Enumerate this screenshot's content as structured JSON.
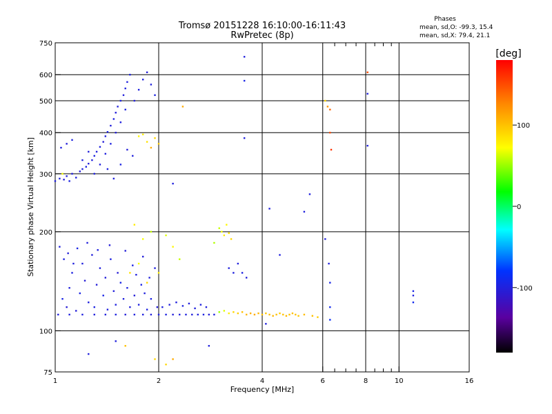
{
  "chart_data": {
    "type": "scatter",
    "title": "Tromsø 20151228 16:10:00-16:11:43",
    "subtitle": "RwPretec (8p)",
    "info": {
      "heading": "Phases",
      "line1": "mean, sd,O:  -99.3, 15.4",
      "line2": "mean, sd,X:  79.4, 21.1"
    },
    "xlabel": "Frequency [MHz]",
    "ylabel": "Stationary phase Virtual Height [km]",
    "x_scale": "log",
    "y_scale": "log",
    "xlim": [
      1,
      16
    ],
    "ylim": [
      75,
      750
    ],
    "x_ticks": [
      {
        "value": 1,
        "label": "1"
      },
      {
        "value": 2,
        "label": "2"
      },
      {
        "value": 4,
        "label": "4"
      },
      {
        "value": 6,
        "label": "6"
      },
      {
        "value": 8,
        "label": "8"
      },
      {
        "value": 10,
        "label": "10"
      },
      {
        "value": 16,
        "label": "16"
      }
    ],
    "x_grid": [
      2,
      4,
      6,
      8,
      10
    ],
    "x_minor": [
      6.5,
      7,
      7.5,
      8.5,
      9,
      9.5
    ],
    "y_ticks": [
      {
        "value": 75,
        "label": "75"
      },
      {
        "value": 100,
        "label": "100"
      },
      {
        "value": 200,
        "label": "200"
      },
      {
        "value": 300,
        "label": "300"
      },
      {
        "value": 400,
        "label": "400"
      },
      {
        "value": 500,
        "label": "500"
      },
      {
        "value": 600,
        "label": "600"
      },
      {
        "value": 750,
        "label": "750"
      }
    ],
    "y_grid": [
      100,
      200,
      300,
      400,
      500,
      600
    ],
    "colorbar": {
      "label": "[deg]",
      "range": [
        -180,
        180
      ],
      "ticks": [
        {
          "value": 100,
          "label": "100"
        },
        {
          "value": 0,
          "label": "0"
        },
        {
          "value": -100,
          "label": "-100"
        }
      ]
    },
    "points": [
      [
        1.02,
        112,
        -100
      ],
      [
        1.05,
        125,
        -95
      ],
      [
        1.08,
        118,
        -105
      ],
      [
        1.1,
        135,
        -100
      ],
      [
        1.12,
        150,
        -98
      ],
      [
        1.15,
        115,
        -102
      ],
      [
        1.18,
        130,
        -96
      ],
      [
        1.2,
        160,
        -100
      ],
      [
        1.22,
        142,
        -104
      ],
      [
        1.25,
        122,
        -99
      ],
      [
        1.28,
        170,
        -101
      ],
      [
        1.3,
        118,
        -97
      ],
      [
        1.32,
        138,
        -103
      ],
      [
        1.35,
        155,
        -100
      ],
      [
        1.38,
        128,
        -95
      ],
      [
        1.4,
        145,
        -102
      ],
      [
        1.42,
        116,
        -100
      ],
      [
        1.45,
        165,
        -98
      ],
      [
        1.48,
        132,
        -101
      ],
      [
        1.5,
        120,
        -99
      ],
      [
        1.52,
        150,
        -104
      ],
      [
        1.55,
        140,
        -96
      ],
      [
        1.58,
        125,
        -100
      ],
      [
        1.6,
        175,
        -102
      ],
      [
        1.62,
        135,
        -98
      ],
      [
        1.65,
        118,
        -101
      ],
      [
        1.68,
        158,
        -97
      ],
      [
        1.7,
        128,
        -103
      ],
      [
        1.72,
        148,
        -100
      ],
      [
        1.75,
        120,
        -99
      ],
      [
        1.78,
        138,
        -95
      ],
      [
        1.8,
        168,
        -102
      ],
      [
        1.82,
        130,
        -100
      ],
      [
        1.85,
        116,
        -98
      ],
      [
        1.88,
        145,
        -101
      ],
      [
        1.9,
        125,
        -97
      ],
      [
        1.95,
        155,
        -100
      ],
      [
        1.98,
        118,
        -104
      ],
      [
        1.03,
        180,
        -100
      ],
      [
        1.06,
        165,
        -98
      ],
      [
        1.09,
        172,
        -102
      ],
      [
        1.13,
        160,
        -100
      ],
      [
        1.16,
        178,
        -96
      ],
      [
        1.24,
        185,
        -101
      ],
      [
        1.33,
        176,
        -99
      ],
      [
        1.44,
        182,
        -103
      ],
      [
        1.0,
        285,
        -100
      ],
      [
        1.03,
        290,
        -98
      ],
      [
        1.06,
        288,
        -102
      ],
      [
        1.08,
        295,
        -100
      ],
      [
        1.1,
        285,
        -97
      ],
      [
        1.12,
        300,
        -101
      ],
      [
        1.15,
        292,
        -99
      ],
      [
        1.18,
        305,
        -103
      ],
      [
        1.2,
        310,
        -100
      ],
      [
        1.23,
        315,
        -96
      ],
      [
        1.25,
        322,
        -102
      ],
      [
        1.28,
        330,
        -100
      ],
      [
        1.3,
        340,
        -98
      ],
      [
        1.32,
        350,
        -101
      ],
      [
        1.35,
        362,
        -99
      ],
      [
        1.38,
        375,
        -103
      ],
      [
        1.4,
        390,
        -100
      ],
      [
        1.42,
        402,
        -97
      ],
      [
        1.45,
        420,
        -101
      ],
      [
        1.48,
        440,
        -99
      ],
      [
        1.5,
        460,
        -102
      ],
      [
        1.52,
        480,
        -100
      ],
      [
        1.55,
        500,
        -98
      ],
      [
        1.58,
        520,
        -101
      ],
      [
        1.6,
        545,
        -99
      ],
      [
        1.62,
        570,
        -100
      ],
      [
        1.65,
        600,
        -97
      ],
      [
        1.3,
        300,
        -99
      ],
      [
        1.35,
        320,
        -101
      ],
      [
        1.4,
        345,
        -100
      ],
      [
        1.45,
        370,
        -98
      ],
      [
        1.5,
        400,
        -102
      ],
      [
        1.55,
        430,
        -100
      ],
      [
        1.6,
        470,
        -97
      ],
      [
        1.7,
        500,
        -101
      ],
      [
        1.75,
        540,
        -99
      ],
      [
        1.8,
        580,
        -100
      ],
      [
        1.85,
        610,
        -103
      ],
      [
        1.9,
        560,
        -100
      ],
      [
        1.95,
        520,
        -98
      ],
      [
        1.04,
        360,
        -100
      ],
      [
        1.08,
        370,
        -102
      ],
      [
        1.12,
        380,
        -98
      ],
      [
        1.2,
        330,
        -100
      ],
      [
        1.25,
        350,
        -101
      ],
      [
        1.42,
        310,
        -99
      ],
      [
        1.48,
        290,
        -100
      ],
      [
        1.55,
        320,
        -97
      ],
      [
        1.62,
        355,
        -102
      ],
      [
        1.68,
        340,
        -100
      ],
      [
        1.75,
        390,
        75
      ],
      [
        1.85,
        375,
        85
      ],
      [
        1.95,
        385,
        90
      ],
      [
        2.0,
        370,
        95
      ],
      [
        1.9,
        360,
        110
      ],
      [
        1.8,
        395,
        80
      ],
      [
        1.05,
        300,
        70
      ],
      [
        1.1,
        112,
        -100
      ],
      [
        1.2,
        112,
        -99
      ],
      [
        1.3,
        112,
        -101
      ],
      [
        1.4,
        112,
        -100
      ],
      [
        1.5,
        112,
        -98
      ],
      [
        1.6,
        112,
        -102
      ],
      [
        1.7,
        112,
        -100
      ],
      [
        1.8,
        112,
        -99
      ],
      [
        1.9,
        112,
        -101
      ],
      [
        2.0,
        112,
        -100
      ],
      [
        2.1,
        112,
        -98
      ],
      [
        2.2,
        112,
        -102
      ],
      [
        2.3,
        112,
        -100
      ],
      [
        2.4,
        112,
        -99
      ],
      [
        2.5,
        112,
        -101
      ],
      [
        2.6,
        112,
        -100
      ],
      [
        2.7,
        112,
        -98
      ],
      [
        2.8,
        112,
        -102
      ],
      [
        2.9,
        112,
        -100
      ],
      [
        2.05,
        118,
        -99
      ],
      [
        2.15,
        120,
        -101
      ],
      [
        2.25,
        122,
        -100
      ],
      [
        2.35,
        119,
        -98
      ],
      [
        2.45,
        121,
        -102
      ],
      [
        2.55,
        117,
        -100
      ],
      [
        2.65,
        120,
        -99
      ],
      [
        2.75,
        118,
        -101
      ],
      [
        3.0,
        114,
        50
      ],
      [
        3.1,
        115,
        65
      ],
      [
        3.2,
        113,
        80
      ],
      [
        3.3,
        114,
        90
      ],
      [
        3.4,
        113,
        95
      ],
      [
        3.5,
        114,
        100
      ],
      [
        3.6,
        112,
        105
      ],
      [
        3.7,
        113,
        108
      ],
      [
        3.8,
        112,
        110
      ],
      [
        3.9,
        113,
        105
      ],
      [
        4.0,
        112,
        100
      ],
      [
        4.1,
        113,
        98
      ],
      [
        4.2,
        112,
        102
      ],
      [
        4.3,
        111,
        104
      ],
      [
        4.4,
        112,
        100
      ],
      [
        4.5,
        113,
        96
      ],
      [
        4.6,
        112,
        100
      ],
      [
        4.7,
        111,
        103
      ],
      [
        4.8,
        112,
        99
      ],
      [
        4.9,
        113,
        101
      ],
      [
        5.0,
        112,
        100
      ],
      [
        5.1,
        111,
        97
      ],
      [
        5.3,
        112,
        102
      ],
      [
        5.6,
        111,
        100
      ],
      [
        5.8,
        110,
        95
      ],
      [
        3.0,
        205,
        60
      ],
      [
        3.05,
        200,
        70
      ],
      [
        3.1,
        195,
        80
      ],
      [
        3.15,
        210,
        75
      ],
      [
        3.2,
        198,
        85
      ],
      [
        3.25,
        190,
        90
      ],
      [
        2.9,
        185,
        55
      ],
      [
        1.9,
        200,
        60
      ],
      [
        1.8,
        190,
        70
      ],
      [
        1.7,
        210,
        80
      ],
      [
        2.1,
        195,
        65
      ],
      [
        2.2,
        180,
        75
      ],
      [
        1.75,
        160,
        70
      ],
      [
        1.65,
        150,
        85
      ],
      [
        1.85,
        140,
        90
      ],
      [
        2.0,
        150,
        80
      ],
      [
        2.3,
        165,
        60
      ],
      [
        3.4,
        160,
        -100
      ],
      [
        3.5,
        150,
        -98
      ],
      [
        3.6,
        145,
        -102
      ],
      [
        3.2,
        155,
        -100
      ],
      [
        3.3,
        150,
        -99
      ],
      [
        6.2,
        480,
        120
      ],
      [
        6.3,
        470,
        140
      ],
      [
        6.1,
        500,
        90
      ],
      [
        6.3,
        400,
        150
      ],
      [
        6.35,
        355,
        160
      ],
      [
        6.25,
        160,
        -100
      ],
      [
        6.3,
        140,
        -95
      ],
      [
        6.3,
        118,
        -90
      ],
      [
        6.3,
        108,
        -85
      ],
      [
        6.1,
        190,
        -100
      ],
      [
        8.1,
        610,
        150
      ],
      [
        8.1,
        525,
        -100
      ],
      [
        8.1,
        365,
        -100
      ],
      [
        11.0,
        128,
        -100
      ],
      [
        11.0,
        132,
        -95
      ],
      [
        11.0,
        122,
        -90
      ],
      [
        3.55,
        680,
        -100
      ],
      [
        3.55,
        575,
        -95
      ],
      [
        3.55,
        385,
        -100
      ],
      [
        2.35,
        480,
        110
      ],
      [
        2.2,
        280,
        -100
      ],
      [
        2.8,
        90,
        -100
      ],
      [
        1.5,
        93,
        -100
      ],
      [
        1.25,
        85,
        -100
      ],
      [
        1.6,
        90,
        100
      ],
      [
        1.95,
        82,
        90
      ],
      [
        2.1,
        79,
        90
      ],
      [
        2.2,
        82,
        110
      ],
      [
        4.2,
        235,
        -100
      ],
      [
        4.1,
        105,
        -100
      ],
      [
        4.5,
        170,
        -100
      ],
      [
        5.5,
        260,
        -100
      ],
      [
        5.3,
        230,
        -100
      ]
    ]
  }
}
